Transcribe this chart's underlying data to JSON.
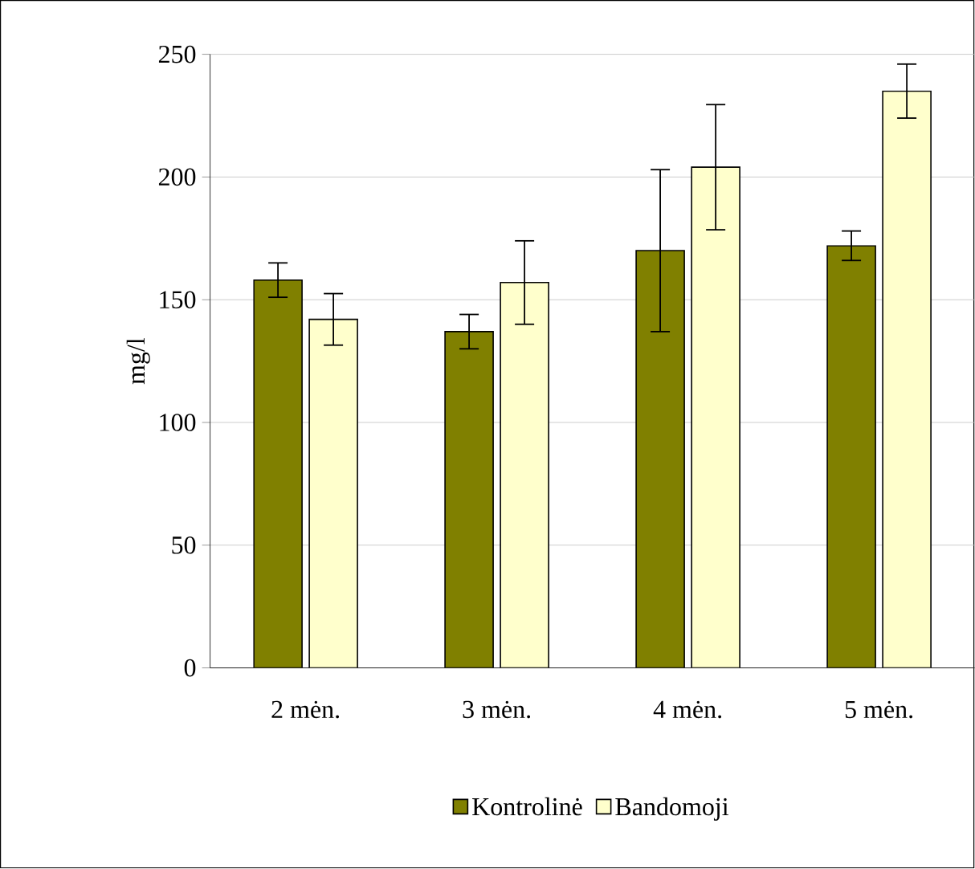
{
  "chart_data": {
    "type": "bar",
    "ylabel": "mg/l",
    "categories": [
      "2 mėn.",
      "3 mėn.",
      "4 mėn.",
      "5 mėn."
    ],
    "series": [
      {
        "name": "Kontrolinė",
        "color": "#808000",
        "values": [
          158,
          137,
          170,
          172
        ],
        "errors": [
          7,
          7,
          33,
          6
        ]
      },
      {
        "name": "Bandomoji",
        "color": "#ffffcc",
        "values": [
          142,
          157,
          204,
          235
        ],
        "errors": [
          10.5,
          17,
          25.5,
          11
        ]
      }
    ],
    "ylim": [
      0,
      250
    ],
    "yticks": [
      0,
      50,
      100,
      150,
      200,
      250
    ],
    "grid": "y",
    "legend": "bottom"
  }
}
